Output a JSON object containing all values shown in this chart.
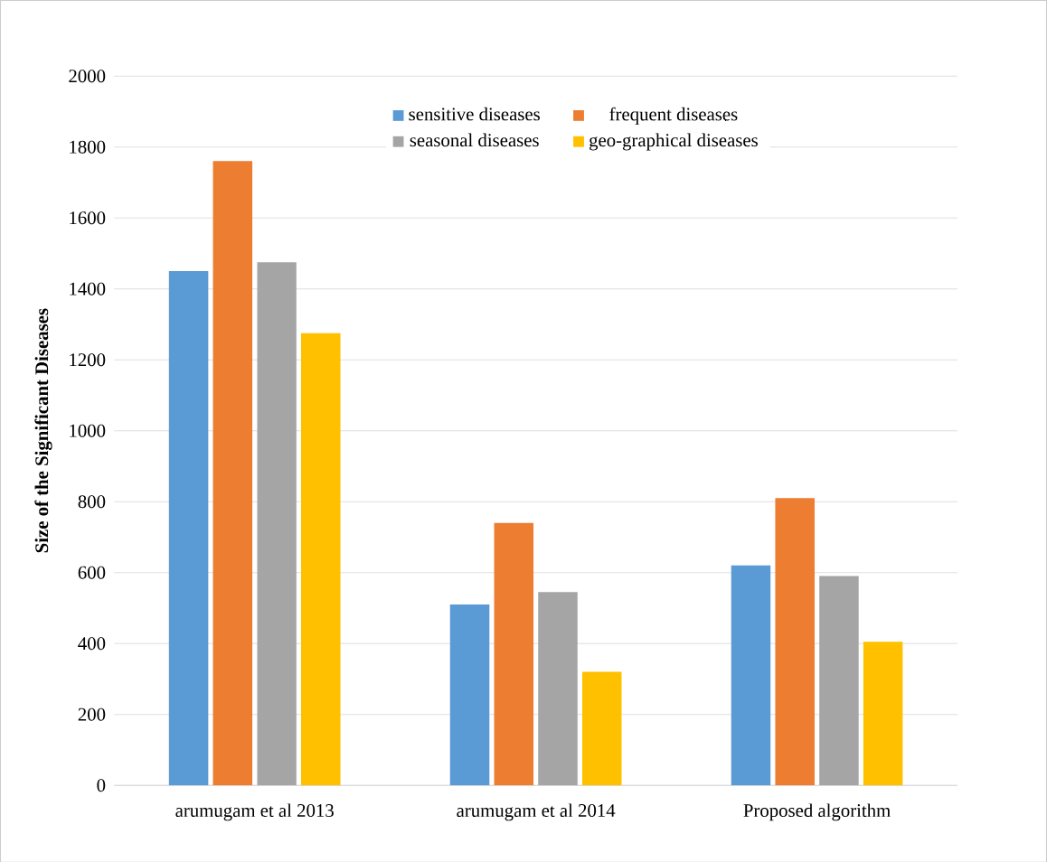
{
  "chart_data": {
    "type": "bar",
    "ylabel": "Size of the Significant Diseases",
    "categories": [
      "arumugam et al 2013",
      "arumugam et al 2014",
      "Proposed algorithm"
    ],
    "series": [
      {
        "name": "sensitive diseases",
        "color": "#5b9bd5",
        "values": [
          1450,
          510,
          620
        ]
      },
      {
        "name": "frequent diseases",
        "color": "#ed7d31",
        "values": [
          1760,
          740,
          810
        ]
      },
      {
        "name": "seasonal diseases",
        "color": "#a5a5a5",
        "values": [
          1475,
          545,
          590
        ]
      },
      {
        "name": "geo-graphical diseases",
        "color": "#ffc000",
        "values": [
          1275,
          320,
          405
        ]
      }
    ],
    "ylim": [
      0,
      2000
    ],
    "yticks": [
      0,
      200,
      400,
      600,
      800,
      1000,
      1200,
      1400,
      1600,
      1800,
      2000
    ],
    "grid": "y",
    "legend": "top"
  }
}
